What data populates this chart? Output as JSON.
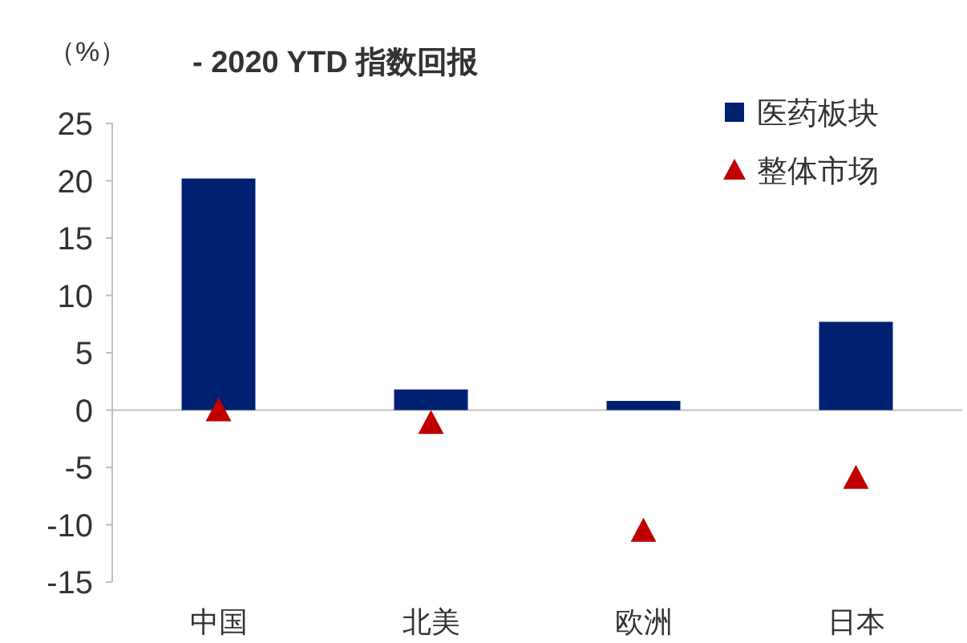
{
  "chart_data": {
    "type": "bar",
    "title": "- 2020 YTD 指数回报",
    "ylabel": "（%）",
    "categories": [
      "中国",
      "北美",
      "欧洲",
      "日本"
    ],
    "series": [
      {
        "name": "医药板块",
        "color": "#002072",
        "values": [
          20.2,
          1.8,
          0.8,
          7.7
        ]
      },
      {
        "name": "整体市场",
        "color": "#c00000",
        "type": "scatter",
        "marker": "triangle",
        "values": [
          0.0,
          -1.1,
          -10.5,
          -5.9
        ]
      }
    ],
    "ylim": [
      -15,
      25
    ],
    "yticks": [
      -15,
      -10,
      -5,
      0,
      5,
      10,
      15,
      20,
      25
    ],
    "legend": "top right"
  }
}
